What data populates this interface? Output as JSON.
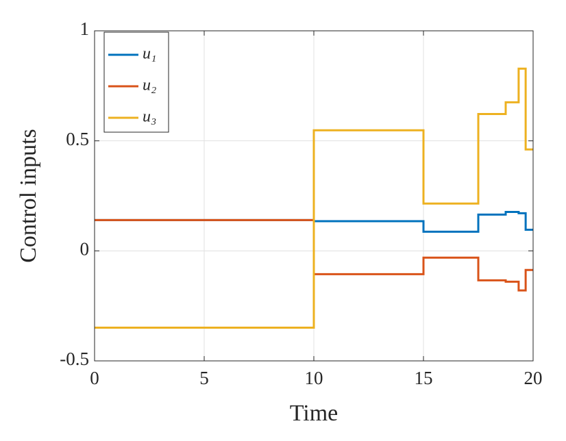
{
  "chart_data": {
    "type": "line",
    "drawstyle": "steps-post",
    "xlabel": "Time",
    "ylabel": "Control inputs",
    "x": [
      0,
      10,
      15,
      17.5,
      18.75,
      19.34,
      19.66,
      20
    ],
    "series": [
      {
        "name": "u₁",
        "color": "#0072bd",
        "values": [
          0.14,
          0.135,
          0.087,
          0.165,
          0.177,
          0.171,
          0.096,
          0.096
        ]
      },
      {
        "name": "u₂",
        "color": "#d95319",
        "values": [
          0.14,
          -0.106,
          -0.031,
          -0.134,
          -0.14,
          -0.18,
          -0.087,
          -0.087
        ]
      },
      {
        "name": "u₃",
        "color": "#edb120",
        "values": [
          -0.349,
          0.548,
          0.215,
          0.622,
          0.675,
          0.828,
          0.461,
          0.461
        ]
      }
    ],
    "xlim": [
      0,
      20
    ],
    "ylim": [
      -0.5,
      1
    ],
    "xticks": [
      0,
      5,
      10,
      15,
      20
    ],
    "yticks": [
      -0.5,
      0,
      0.5,
      1
    ],
    "grid": true,
    "legend": "northwest"
  }
}
